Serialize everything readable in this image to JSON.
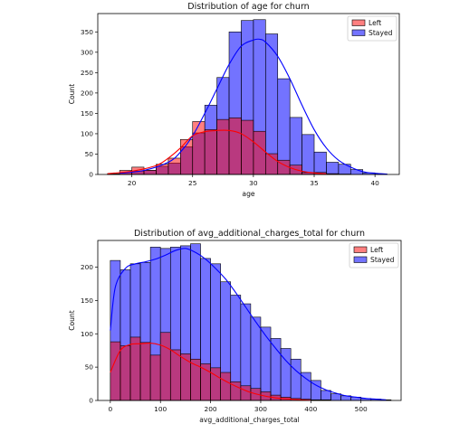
{
  "colors": {
    "left": "#ff0000",
    "stayed": "#0000ff",
    "left_alpha": 0.5,
    "stayed_alpha": 0.55
  },
  "chart_data": [
    {
      "type": "bar",
      "title": "Distribution of age for churn",
      "xlabel": "age",
      "ylabel": "Count",
      "xlim": [
        17.2,
        42
      ],
      "ylim": [
        0,
        395
      ],
      "xticks": [
        20,
        25,
        30,
        35,
        40
      ],
      "yticks": [
        0,
        50,
        100,
        150,
        200,
        250,
        300,
        350
      ],
      "legend_position": "top-right",
      "legend": [
        "Left",
        "Stayed"
      ],
      "bin_edges": [
        18,
        19,
        20,
        21,
        22,
        23,
        24,
        25,
        26,
        27,
        28,
        29,
        30,
        31,
        32,
        33,
        34,
        35,
        36,
        37,
        38,
        39,
        40,
        41
      ],
      "series": [
        {
          "name": "Left",
          "values": [
            2,
            10,
            18,
            10,
            25,
            40,
            86,
            130,
            110,
            135,
            139,
            133,
            106,
            51,
            35,
            23,
            5,
            5,
            2,
            1,
            0,
            0,
            0
          ],
          "kde_x": [
            18,
            20,
            22,
            23,
            24,
            25,
            26,
            27,
            28,
            29,
            30,
            31,
            32,
            33,
            34,
            35,
            36
          ],
          "kde_y": [
            2,
            8,
            22,
            40,
            65,
            95,
            105,
            108,
            108,
            100,
            80,
            55,
            32,
            17,
            8,
            4,
            1
          ]
        },
        {
          "name": "Stayed",
          "values": [
            1,
            5,
            8,
            10,
            20,
            28,
            68,
            102,
            170,
            238,
            350,
            378,
            380,
            345,
            235,
            140,
            98,
            55,
            30,
            25,
            12,
            4,
            1
          ],
          "kde_x": [
            19,
            21,
            23,
            24,
            25,
            26,
            27,
            28,
            29,
            30,
            30.5,
            31,
            32,
            33,
            34,
            35,
            36,
            37,
            38,
            39,
            40,
            41
          ],
          "kde_y": [
            3,
            10,
            30,
            55,
            95,
            150,
            210,
            270,
            315,
            330,
            332,
            325,
            290,
            235,
            170,
            110,
            65,
            35,
            18,
            7,
            3,
            1
          ]
        }
      ]
    },
    {
      "type": "bar",
      "title": "Distribution of avg_additional_charges_total for churn",
      "xlabel": "avg_additional_charges_total",
      "ylabel": "Count",
      "xlim": [
        -25,
        580
      ],
      "ylim": [
        0,
        240
      ],
      "xticks": [
        0,
        100,
        200,
        300,
        400,
        500
      ],
      "yticks": [
        0,
        50,
        100,
        150,
        200
      ],
      "legend_position": "top-right",
      "legend": [
        "Left",
        "Stayed"
      ],
      "bin_edges": [
        0,
        20,
        40,
        60,
        80,
        100,
        120,
        140,
        160,
        180,
        200,
        220,
        240,
        260,
        280,
        300,
        320,
        340,
        360,
        380,
        400,
        420,
        440,
        460,
        480,
        500,
        520,
        540,
        560
      ],
      "series": [
        {
          "name": "Left",
          "values": [
            88,
            82,
            95,
            87,
            68,
            102,
            76,
            70,
            62,
            55,
            49,
            42,
            28,
            22,
            18,
            13,
            8,
            5,
            3,
            2,
            1,
            1,
            0,
            0,
            0,
            0,
            0,
            0
          ],
          "kde_x": [
            0,
            20,
            40,
            60,
            80,
            100,
            120,
            140,
            160,
            180,
            200,
            220,
            240,
            260,
            280,
            300,
            320,
            340,
            360,
            380,
            400
          ],
          "kde_y": [
            42,
            75,
            84,
            85,
            86,
            83,
            76,
            66,
            57,
            50,
            42,
            33,
            25,
            18,
            12,
            8,
            5,
            3,
            2,
            1,
            0
          ]
        },
        {
          "name": "Stayed",
          "values": [
            210,
            196,
            205,
            207,
            230,
            228,
            230,
            232,
            235,
            213,
            205,
            178,
            158,
            145,
            125,
            110,
            93,
            78,
            62,
            42,
            30,
            15,
            10,
            7,
            5,
            3,
            2,
            1
          ],
          "kde_x": [
            0,
            10,
            30,
            50,
            70,
            90,
            110,
            130,
            150,
            170,
            190,
            210,
            230,
            250,
            270,
            290,
            310,
            330,
            350,
            370,
            390,
            410,
            430,
            450,
            470,
            490,
            510,
            530,
            550
          ],
          "kde_y": [
            105,
            170,
            198,
            205,
            208,
            212,
            218,
            225,
            228,
            222,
            212,
            198,
            182,
            162,
            140,
            118,
            97,
            78,
            60,
            45,
            33,
            23,
            16,
            11,
            7,
            5,
            3,
            2,
            1
          ]
        }
      ]
    }
  ]
}
